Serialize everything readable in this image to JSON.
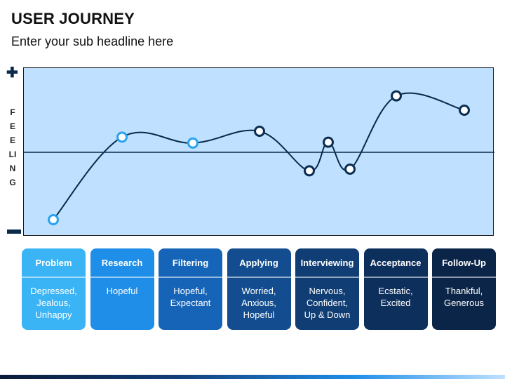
{
  "header": {
    "title": "USER JOURNEY",
    "subtitle": "Enter your sub headline here"
  },
  "axis": {
    "plus": "✚",
    "minus": "▬",
    "label": "FEELING"
  },
  "colors": {
    "plot_background": "#bfe1ff",
    "curve": "#0a2a4a",
    "marker_light": "#29a3f0",
    "marker_dark": "#0b2d52"
  },
  "stages": [
    {
      "name": "Problem",
      "feelings": "Depressed,\nJealous,\nUnhappy",
      "color": "#3bb4f5"
    },
    {
      "name": "Research",
      "feelings": "Hopeful",
      "color": "#1e8ee8"
    },
    {
      "name": "Filtering",
      "feelings": "Hopeful,\nExpectant",
      "color": "#1564b8"
    },
    {
      "name": "Applying",
      "feelings": "Worried,\nAnxious,\nHopeful",
      "color": "#134d8f"
    },
    {
      "name": "Interviewing",
      "feelings": "Nervous,\nConfident,\nUp & Down",
      "color": "#103d73"
    },
    {
      "name": "Acceptance",
      "feelings": "Ecstatic,\nExcited",
      "color": "#0d2f5c"
    },
    {
      "name": "Follow-Up",
      "feelings": "Thankful,\nGenerous",
      "color": "#0b2548"
    }
  ],
  "journey_points": [
    {
      "stage": "Problem",
      "level": -0.8,
      "style": "light"
    },
    {
      "stage": "Research",
      "level": 0.18,
      "style": "light"
    },
    {
      "stage": "Filtering",
      "level": 0.11,
      "style": "light"
    },
    {
      "stage": "Applying",
      "level": 0.25,
      "style": "dark"
    },
    {
      "stage": "Interviewing",
      "level": -0.22,
      "style": "dark"
    },
    {
      "stage": "Interviewing",
      "level": 0.12,
      "style": "dark"
    },
    {
      "stage": "Interviewing",
      "level": -0.2,
      "style": "dark"
    },
    {
      "stage": "Acceptance",
      "level": 0.67,
      "style": "dark"
    },
    {
      "stage": "Follow-Up",
      "level": 0.5,
      "style": "dark"
    }
  ]
}
